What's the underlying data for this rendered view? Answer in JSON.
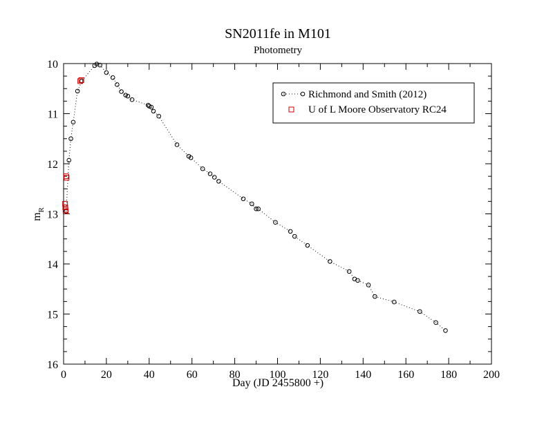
{
  "chart_data": {
    "type": "scatter",
    "title": "SN2011fe in M101",
    "subtitle": "Photometry",
    "xlabel": "Day (JD 2455800 +)",
    "ylabel_main": "m",
    "ylabel_sub": "R",
    "xlim": [
      0,
      200
    ],
    "ylim": [
      10,
      16
    ],
    "y_inverted": true,
    "grid": false,
    "legend_position": "top-right",
    "x_ticks": [
      0,
      20,
      40,
      60,
      80,
      100,
      120,
      140,
      160,
      180,
      200
    ],
    "y_ticks": [
      10,
      11,
      12,
      13,
      14,
      15,
      16
    ],
    "series": [
      {
        "name": "Richmond and Smith (2012)",
        "marker": "circle",
        "line": "dotted",
        "color": "#000000",
        "x": [
          1.2,
          2.5,
          3.4,
          4.5,
          6.5,
          8.5,
          14.5,
          15.5,
          17.0,
          20.0,
          23.0,
          25.0,
          27.0,
          29.0,
          30.0,
          32.0,
          39.5,
          40.0,
          41.0,
          42.0,
          44.5,
          53.0,
          58.5,
          59.5,
          65.0,
          68.5,
          70.5,
          72.5,
          84.0,
          88.0,
          90.0,
          91.0,
          99.0,
          106.0,
          108.0,
          114.0,
          124.5,
          133.5,
          136.0,
          137.5,
          142.5,
          145.5,
          154.5,
          166.5,
          174.0,
          178.5
        ],
        "y": [
          12.95,
          11.93,
          11.5,
          11.17,
          10.55,
          10.35,
          10.04,
          10.01,
          10.03,
          10.18,
          10.28,
          10.42,
          10.56,
          10.63,
          10.65,
          10.72,
          10.83,
          10.85,
          10.87,
          10.95,
          11.05,
          11.62,
          11.85,
          11.88,
          12.1,
          12.2,
          12.27,
          12.35,
          12.7,
          12.8,
          12.9,
          12.9,
          13.17,
          13.35,
          13.45,
          13.63,
          13.95,
          14.15,
          14.3,
          14.33,
          14.42,
          14.65,
          14.76,
          14.95,
          15.17,
          15.33
        ],
        "connected": true
      },
      {
        "name": "U of L Moore Observatory RC24",
        "marker": "square",
        "line": "none",
        "color": "#cc0000",
        "x": [
          0.7,
          0.8,
          0.9,
          1.0,
          1.2,
          1.4,
          7.8,
          8.3
        ],
        "y": [
          12.8,
          12.87,
          12.92,
          12.95,
          12.25,
          12.28,
          10.35,
          10.33
        ],
        "connected": false
      }
    ]
  }
}
